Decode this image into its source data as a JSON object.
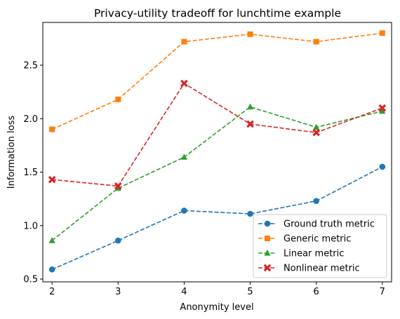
{
  "chart_data": {
    "type": "line",
    "title": "Privacy-utility tradeoff for lunchtime example",
    "xlabel": "Anonymity level",
    "ylabel": "Information loss",
    "x": [
      2,
      3,
      4,
      5,
      6,
      7
    ],
    "xlim": [
      1.86,
      7.14
    ],
    "ylim": [
      0.474,
      2.9
    ],
    "xticks": [
      "2",
      "3",
      "4",
      "5",
      "6",
      "7"
    ],
    "yticks": [
      "0.5",
      "1.0",
      "1.5",
      "2.0",
      "2.5"
    ],
    "ytick_values": [
      0.5,
      1.0,
      1.5,
      2.0,
      2.5
    ],
    "grid": false,
    "legend_position": "lower-right",
    "series": [
      {
        "name": "Ground truth metric",
        "color": "#1f77b4",
        "marker": "circle",
        "values": [
          0.59,
          0.86,
          1.14,
          1.11,
          1.23,
          1.55
        ]
      },
      {
        "name": "Generic metric",
        "color": "#ff7f0e",
        "marker": "square",
        "values": [
          1.9,
          2.18,
          2.72,
          2.79,
          2.72,
          2.8
        ]
      },
      {
        "name": "Linear metric",
        "color": "#2ca02c",
        "marker": "triangle",
        "values": [
          0.86,
          1.35,
          1.64,
          2.11,
          1.92,
          2.07
        ]
      },
      {
        "name": "Nonlinear metric",
        "color": "#d62728",
        "marker": "x",
        "values": [
          1.43,
          1.37,
          2.33,
          1.95,
          1.87,
          2.1
        ]
      }
    ]
  }
}
